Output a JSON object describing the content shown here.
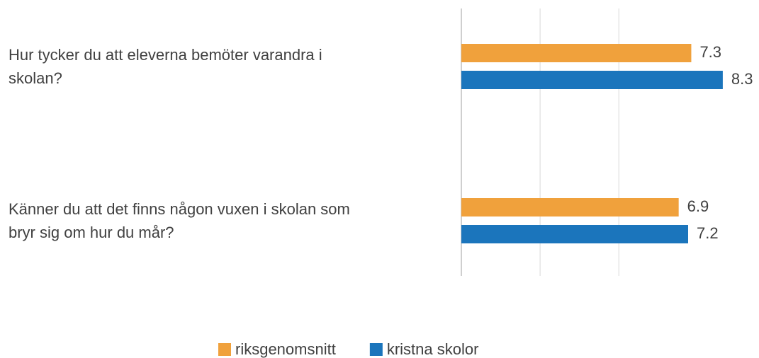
{
  "chart_data": {
    "type": "bar",
    "orientation": "horizontal",
    "categories": [
      "Hur tycker du att eleverna bemöter varandra i skolan?",
      "Känner du att det finns någon vuxen i skolan som bryr sig om hur du mår?"
    ],
    "series": [
      {
        "name": "riksgenomsnitt",
        "color": "#f0a13c",
        "values": [
          7.3,
          6.9
        ]
      },
      {
        "name": "kristna skolor",
        "color": "#1b75bc",
        "values": [
          8.3,
          7.2
        ]
      }
    ],
    "xlim": [
      0,
      9
    ],
    "xticks": [
      0,
      2.5,
      5
    ],
    "grid": true,
    "legend": "bottom"
  }
}
